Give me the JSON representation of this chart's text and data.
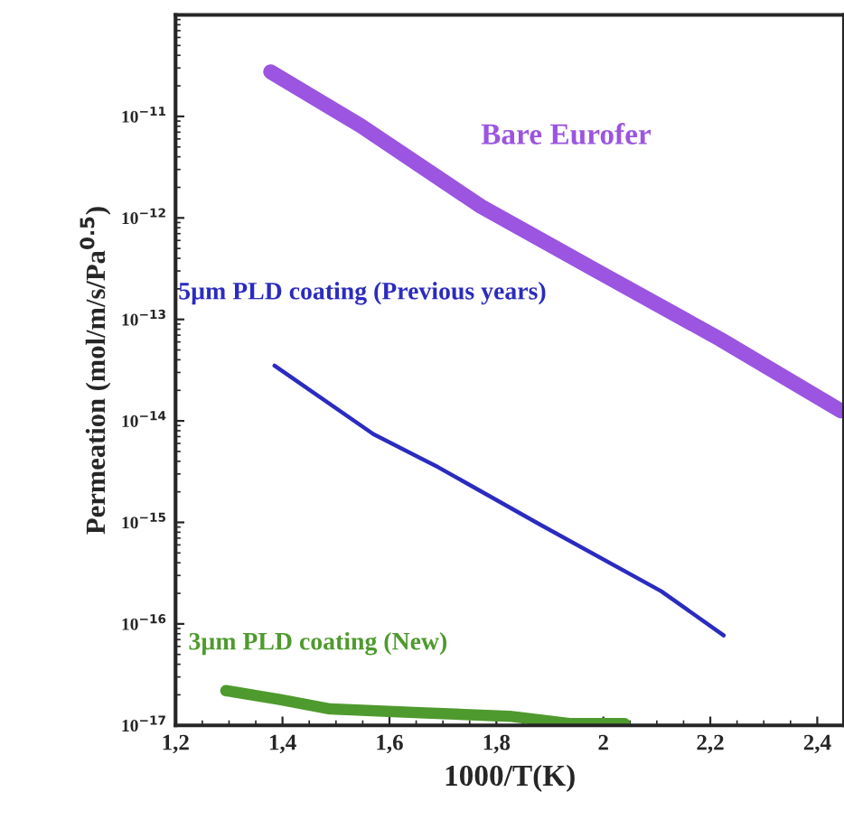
{
  "chart_data": {
    "type": "line",
    "xlabel": "1000/T(K)",
    "ylabel": "Permeation (mol/m/s/Pa$^{0.5}$)",
    "log": "y",
    "grid": false,
    "legend": false,
    "marker": "none",
    "line_style": "solid",
    "xlim": [
      1.2,
      2.45
    ],
    "ylim": [
      1e-17,
      1e-10
    ],
    "xticks": [
      {
        "value": 1.2,
        "label": "1,2"
      },
      {
        "value": 1.4,
        "label": "1,4"
      },
      {
        "value": 1.6,
        "label": "1,6"
      },
      {
        "value": 1.8,
        "label": "1,8"
      },
      2,
      {
        "value": 2.2,
        "label": "2,2"
      },
      {
        "value": 2.4,
        "label": "2,4"
      }
    ],
    "yticks": [
      {
        "value": 1e-17,
        "label": "10$^{−17}$"
      },
      {
        "value": 1e-16,
        "label": "10$^{−16}$"
      },
      {
        "value": 1e-15,
        "label": "10$^{−15}$"
      },
      {
        "value": 1e-14,
        "label": "10$^{−14}$"
      },
      {
        "value": 1e-13,
        "label": "10$^{−13}$"
      },
      {
        "value": 1e-12,
        "label": "10$^{−12}$"
      },
      {
        "value": 1e-11,
        "label": "10$^{−11}$"
      }
    ],
    "series": [
      {
        "name": "Bare Eurofer",
        "color": "#9b55e0",
        "x": [
          1.378,
          1.546,
          1.771,
          1.993,
          2.218,
          2.444
        ],
        "values": [
          2.75e-11,
          8.1e-12,
          1.3e-12,
          2.9e-13,
          6.4e-14,
          1.26e-14
        ]
      },
      {
        "name": "5µm PLD coating (Previous years)",
        "color": "#2b2bc0",
        "x": [
          1.385,
          1.57,
          1.691,
          1.882,
          2.108,
          2.225
        ],
        "values": [
          3.5e-14,
          7.4e-15,
          3.5e-15,
          9.5e-16,
          2.1e-16,
          7.7e-17
        ]
      },
      {
        "name": "3µm PLD coating (New)",
        "color": "#4f9a2e",
        "x": [
          1.294,
          1.395,
          1.489,
          1.657,
          1.825,
          1.94,
          2.04
        ],
        "values": [
          2.2e-17,
          1.8e-17,
          1.45e-17,
          1.33e-17,
          1.23e-17,
          1.04e-17,
          1.04e-17
        ]
      }
    ]
  }
}
